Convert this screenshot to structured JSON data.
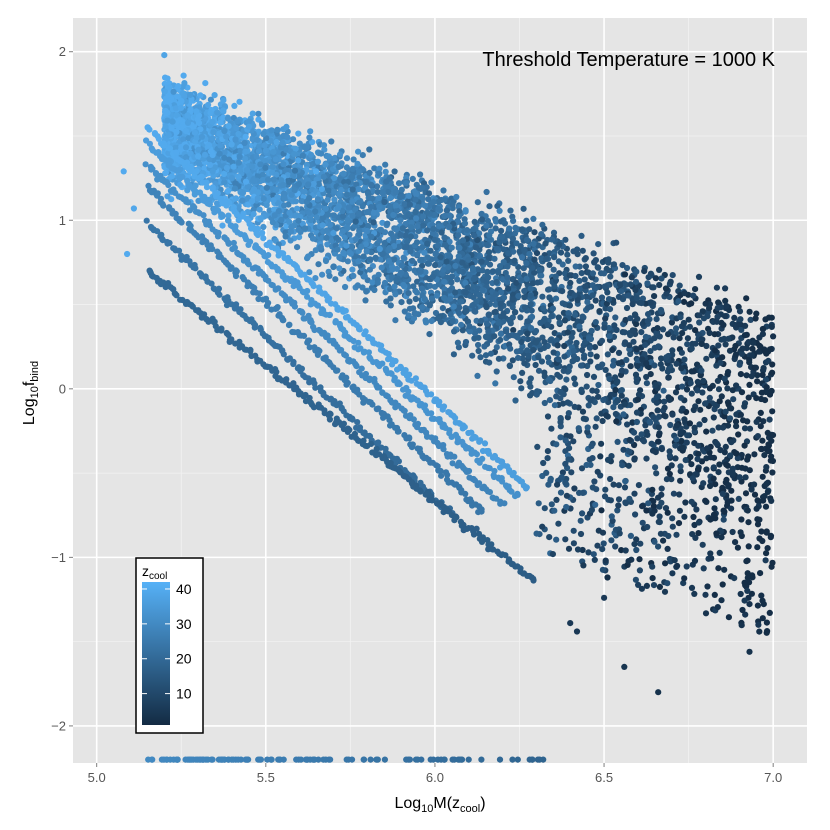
{
  "chart_data": {
    "type": "scatter",
    "annotation": "Threshold Temperature = 1000 K",
    "xlabel": {
      "base": "Log",
      "sub": "10",
      "main": "M(z",
      "sub2": "cool",
      "end": ")"
    },
    "ylabel": {
      "base": "Log",
      "sub": "10",
      "main": "f",
      "sub2": "bind"
    },
    "xlim": [
      4.93,
      7.1
    ],
    "ylim": [
      -2.22,
      2.2
    ],
    "x_ticks": [
      5.0,
      5.5,
      6.0,
      6.5,
      7.0
    ],
    "x_tick_labels": [
      "5.0",
      "5.5",
      "6.0",
      "6.5",
      "7.0"
    ],
    "y_ticks": [
      -2,
      -1,
      0,
      1,
      2
    ],
    "y_tick_labels": [
      "−2",
      "−1",
      "0",
      "1",
      "2"
    ],
    "grid": true,
    "colorbar": {
      "title": {
        "main": "z",
        "sub": "cool"
      },
      "ticks": [
        10,
        20,
        30,
        40
      ],
      "tick_labels": [
        "10",
        "20",
        "30",
        "40"
      ],
      "range": [
        1,
        42
      ],
      "low_color": "#132B43",
      "high_color": "#56B1F7"
    },
    "point_color_low": "#132B43",
    "point_color_high": "#56B1F7",
    "sample_points": [
      {
        "x": 5.08,
        "y": 1.29,
        "z": 40
      },
      {
        "x": 5.09,
        "y": 0.8,
        "z": 40
      },
      {
        "x": 5.11,
        "y": 1.07,
        "z": 39
      },
      {
        "x": 5.2,
        "y": 1.98,
        "z": 38
      },
      {
        "x": 6.66,
        "y": -1.8,
        "z": 3
      },
      {
        "x": 6.93,
        "y": -1.56,
        "z": 3
      },
      {
        "x": 6.56,
        "y": -1.65,
        "z": 4
      },
      {
        "x": 6.42,
        "y": -1.44,
        "z": 5
      },
      {
        "x": 6.4,
        "y": -1.39,
        "z": 5
      },
      {
        "x": 6.5,
        "y": -1.24,
        "z": 5
      }
    ],
    "diagonal_bands": [
      {
        "z": 40,
        "x_start": 5.15,
        "y_start": 1.55,
        "x_end": 6.28,
        "y_end": -0.6
      },
      {
        "z": 36,
        "x_start": 5.15,
        "y_start": 1.45,
        "x_end": 6.25,
        "y_end": -0.65
      },
      {
        "z": 32,
        "x_start": 5.15,
        "y_start": 1.33,
        "x_end": 6.2,
        "y_end": -0.7
      },
      {
        "z": 28,
        "x_start": 5.15,
        "y_start": 1.2,
        "x_end": 6.15,
        "y_end": -0.75
      },
      {
        "z": 24,
        "x_start": 5.15,
        "y_start": 0.98,
        "x_end": 6.05,
        "y_end": -0.75
      },
      {
        "z": 20,
        "x_start": 5.15,
        "y_start": 0.7,
        "x_end": 6.3,
        "y_end": -1.15
      }
    ],
    "bottom_row": {
      "y": -2.2,
      "x_start": 5.15,
      "x_end": 6.32,
      "z": 30
    }
  }
}
